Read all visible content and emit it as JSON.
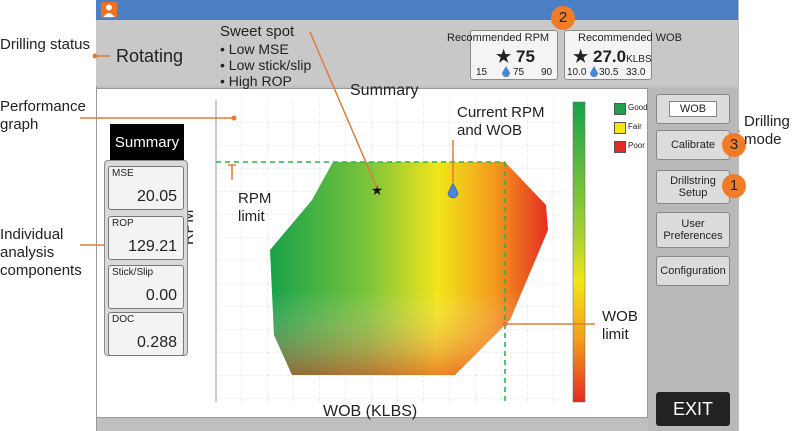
{
  "annotations": {
    "drilling_status": "Drilling status",
    "performance_graph": "Performance graph",
    "individual_analysis": "Individual analysis components",
    "sweet_spot_title": "Sweet spot",
    "sweet_spot_items": [
      "• Low MSE",
      "• Low stick/slip",
      "• High ROP"
    ],
    "current_rpm_wob": "Current RPM and WOB",
    "rpm_limit": "RPM limit",
    "wob_limit": "WOB limit",
    "drilling_mode": "Drilling mode"
  },
  "status": {
    "text": "Rotating"
  },
  "recommended_rpm": {
    "title": "Recommended RPM",
    "value": "75",
    "min": "15",
    "current": "75",
    "max": "90"
  },
  "recommended_wob": {
    "title": "Recommended WOB",
    "value": "27.0",
    "unit": "KLBS",
    "min": "10.0",
    "current": "30.5",
    "max": "33.0"
  },
  "callouts": [
    "1",
    "2",
    "3"
  ],
  "graph": {
    "title": "Summary",
    "xlabel": "WOB (KLBS)",
    "ylabel": "RPM",
    "legend": [
      {
        "label": "Good",
        "color": "#1fa34a"
      },
      {
        "label": "Fair",
        "color": "#f5e614"
      },
      {
        "label": "Poor",
        "color": "#e42b2b"
      }
    ]
  },
  "summary_button": "Summary",
  "components": [
    {
      "label": "MSE",
      "value": "20.05"
    },
    {
      "label": "ROP",
      "value": "129.21"
    },
    {
      "label": "Stick/Slip",
      "value": "0.00"
    },
    {
      "label": "DOC",
      "value": "0.288"
    }
  ],
  "side_buttons": {
    "mode": "WOB",
    "calibrate": "Calibrate",
    "drillstring": "Drillstring Setup",
    "user_prefs": "User Preferences",
    "configuration": "Configuration",
    "exit": "EXIT"
  },
  "colors": {
    "accent": "#f07c28",
    "topbar": "#4a7fc4",
    "guide": "#2fb34a"
  }
}
